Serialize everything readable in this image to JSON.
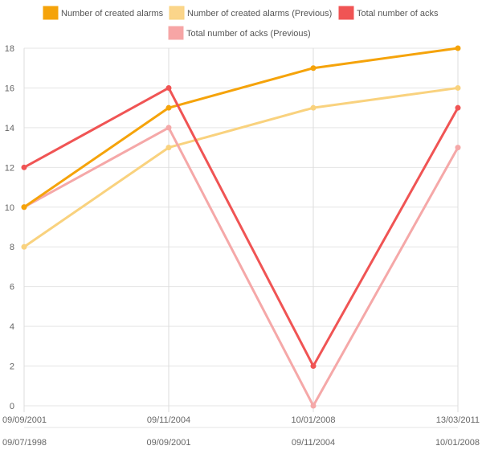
{
  "chart_data": {
    "type": "line",
    "x_primary": [
      "09/09/2001",
      "09/11/2004",
      "10/01/2008",
      "13/03/2011"
    ],
    "x_secondary": [
      "09/07/1998",
      "09/09/2001",
      "09/11/2004",
      "10/01/2008"
    ],
    "ylim": [
      0,
      18
    ],
    "y_ticks": [
      "0",
      "2",
      "4",
      "6",
      "8",
      "10",
      "12",
      "14",
      "16",
      "18"
    ],
    "grid": true,
    "legend_position": "top",
    "series": [
      {
        "name": "Number of created alarms",
        "color": "#f5a30a",
        "fill": "#f5a30a",
        "values": [
          10,
          15,
          17,
          18
        ]
      },
      {
        "name": "Number of created alarms (Previous)",
        "color": "#f9d27e",
        "fill": "#fbd58a",
        "values": [
          8,
          13,
          15,
          16
        ]
      },
      {
        "name": "Total number of acks",
        "color": "#f05454",
        "fill": "#f05454",
        "values": [
          12,
          16,
          2,
          15
        ]
      },
      {
        "name": "Total number of acks (Previous)",
        "color": "#f5a8a8",
        "fill": "#f7a5a5",
        "values": [
          10,
          14,
          0,
          13
        ]
      }
    ]
  }
}
